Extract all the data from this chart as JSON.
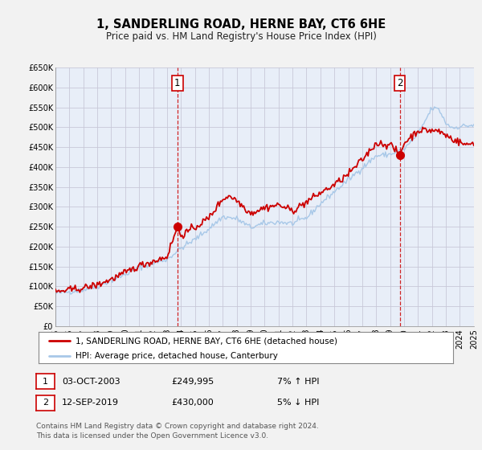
{
  "title": "1, SANDERLING ROAD, HERNE BAY, CT6 6HE",
  "subtitle": "Price paid vs. HM Land Registry's House Price Index (HPI)",
  "legend_line1": "1, SANDERLING ROAD, HERNE BAY, CT6 6HE (detached house)",
  "legend_line2": "HPI: Average price, detached house, Canterbury",
  "footer1": "Contains HM Land Registry data © Crown copyright and database right 2024.",
  "footer2": "This data is licensed under the Open Government Licence v3.0.",
  "sale1_label": "1",
  "sale1_date": "03-OCT-2003",
  "sale1_price": "£249,995",
  "sale1_hpi": "7% ↑ HPI",
  "sale2_label": "2",
  "sale2_date": "12-SEP-2019",
  "sale2_price": "£430,000",
  "sale2_hpi": "5% ↓ HPI",
  "sale1_x": 2003.75,
  "sale1_y": 249995,
  "sale2_x": 2019.7,
  "sale2_y": 430000,
  "hpi_color": "#a8c8e8",
  "price_color": "#cc0000",
  "sale_dot_color": "#cc0000",
  "chart_bg_color": "#e8eef8",
  "fig_bg_color": "#f2f2f2",
  "grid_color": "#c8c8d8",
  "ylim": [
    0,
    650000
  ],
  "xlim": [
    1995,
    2025
  ],
  "yticks": [
    0,
    50000,
    100000,
    150000,
    200000,
    250000,
    300000,
    350000,
    400000,
    450000,
    500000,
    550000,
    600000,
    650000
  ],
  "ytick_labels": [
    "£0",
    "£50K",
    "£100K",
    "£150K",
    "£200K",
    "£250K",
    "£300K",
    "£350K",
    "£400K",
    "£450K",
    "£500K",
    "£550K",
    "£600K",
    "£650K"
  ],
  "xticks": [
    1995,
    1996,
    1997,
    1998,
    1999,
    2000,
    2001,
    2002,
    2003,
    2004,
    2005,
    2006,
    2007,
    2008,
    2009,
    2010,
    2011,
    2012,
    2013,
    2014,
    2015,
    2016,
    2017,
    2018,
    2019,
    2020,
    2021,
    2022,
    2023,
    2024,
    2025
  ],
  "title_fontsize": 10.5,
  "subtitle_fontsize": 8.5,
  "tick_fontsize": 7,
  "legend_fontsize": 7.5,
  "table_fontsize": 8,
  "footer_fontsize": 6.5
}
